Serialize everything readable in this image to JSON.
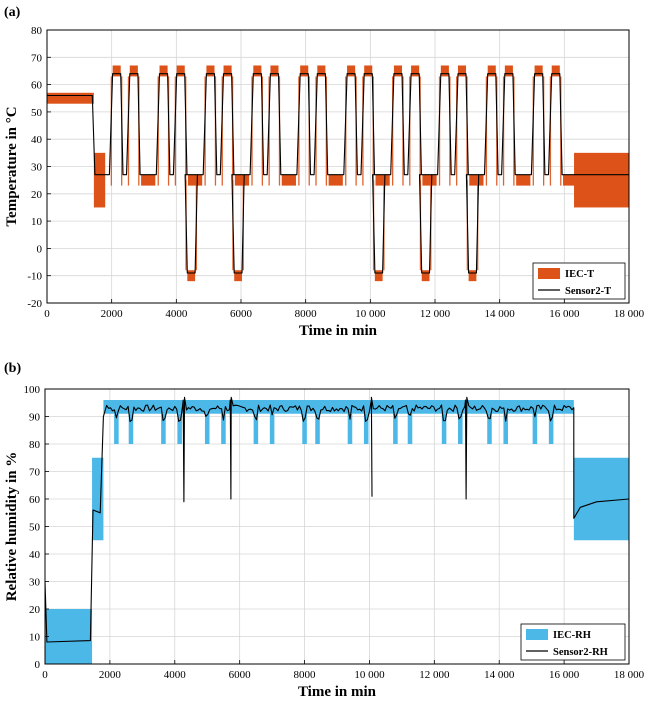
{
  "chart_data": [
    {
      "type": "area",
      "panel_label": "(a)",
      "xlabel": "Time in min",
      "ylabel": "Temperature in °C",
      "xlim": [
        0,
        18000
      ],
      "ylim": [
        -20,
        80
      ],
      "xticks": [
        0,
        2000,
        4000,
        6000,
        8000,
        10000,
        12000,
        14000,
        16000,
        18000
      ],
      "xtick_labels": [
        "0",
        "2000",
        "4000",
        "6000",
        "8000",
        "10 000",
        "12 000",
        "14 000",
        "16 000",
        "18 000"
      ],
      "yticks": [
        -20,
        -10,
        0,
        10,
        20,
        30,
        40,
        50,
        60,
        70,
        80
      ],
      "grid": true,
      "legend_position": "bottom-right",
      "band_color": "#dd5218",
      "line_color": "#000000",
      "series": [
        {
          "name": "IEC-T",
          "style": "band",
          "bands": [
            {
              "x": [
                0,
                1450
              ],
              "y": [
                53,
                57
              ]
            },
            {
              "x": [
                1450,
                1800
              ],
              "y": [
                15,
                35
              ]
            },
            {
              "x": [
                16300,
                18000
              ],
              "y": [
                15,
                35
              ]
            }
          ],
          "cycle_tolerance": 2,
          "cycles": [
            {
              "start": 1950,
              "cold": false
            },
            {
              "start": 3400,
              "cold": false
            },
            {
              "start": 4280,
              "cold": true
            },
            {
              "start": 4850,
              "cold": false
            },
            {
              "start": 5730,
              "cold": true
            },
            {
              "start": 6300,
              "cold": false
            },
            {
              "start": 7750,
              "cold": false
            },
            {
              "start": 9200,
              "cold": false
            },
            {
              "start": 10080,
              "cold": true
            },
            {
              "start": 10650,
              "cold": false
            },
            {
              "start": 11530,
              "cold": true
            },
            {
              "start": 12100,
              "cold": false
            },
            {
              "start": 12980,
              "cold": true
            },
            {
              "start": 13550,
              "cold": false
            },
            {
              "start": 15000,
              "cold": false
            }
          ],
          "cycle_profile": {
            "hot_high": 65,
            "hot_low": 25,
            "cold_low": -10,
            "base": 25
          }
        },
        {
          "name": "Sensor2-T",
          "style": "line",
          "start": {
            "x": [
              0,
              1400
            ],
            "y": 56
          },
          "end_level": 27
        }
      ]
    },
    {
      "type": "area",
      "panel_label": "(b)",
      "xlabel": "Time in min",
      "ylabel": "Relative humidity in %",
      "xlim": [
        0,
        18000
      ],
      "ylim": [
        0,
        100
      ],
      "xticks": [
        0,
        2000,
        4000,
        6000,
        8000,
        10000,
        12000,
        14000,
        16000,
        18000
      ],
      "xtick_labels": [
        "0",
        "2000",
        "4000",
        "6000",
        "8000",
        "10 000",
        "12 000",
        "14 000",
        "16 000",
        "18 000"
      ],
      "yticks": [
        0,
        10,
        20,
        30,
        40,
        50,
        60,
        70,
        80,
        90,
        100
      ],
      "grid": true,
      "legend_position": "bottom-right",
      "band_color": "#4cb8e8",
      "line_color": "#000000",
      "series": [
        {
          "name": "IEC-RH",
          "style": "band",
          "bands": [
            {
              "x": [
                0,
                1450
              ],
              "y": [
                0,
                20
              ]
            },
            {
              "x": [
                1450,
                1800
              ],
              "y": [
                45,
                75
              ]
            },
            {
              "x": [
                1800,
                16300
              ],
              "y": [
                91,
                96
              ]
            },
            {
              "x": [
                16300,
                18000
              ],
              "y": [
                45,
                75
              ]
            }
          ],
          "dips": [
            2200,
            2650,
            3650,
            4150,
            5000,
            5500,
            6500,
            7000,
            8000,
            8400,
            9400,
            9900,
            10800,
            11250,
            12300,
            12800,
            13700,
            14200,
            15100,
            15600
          ],
          "dip_bottom": 80
        },
        {
          "name": "Sensor2-RH",
          "style": "line",
          "baseline": 8,
          "plateau": 93,
          "end_level": 60,
          "spikes": [
            {
              "x": 4280,
              "y": 59
            },
            {
              "x": 5730,
              "y": 60
            },
            {
              "x": 10080,
              "y": 61
            },
            {
              "x": 11530,
              "y": 63
            },
            {
              "x": 12980,
              "y": 60
            }
          ]
        }
      ]
    }
  ]
}
